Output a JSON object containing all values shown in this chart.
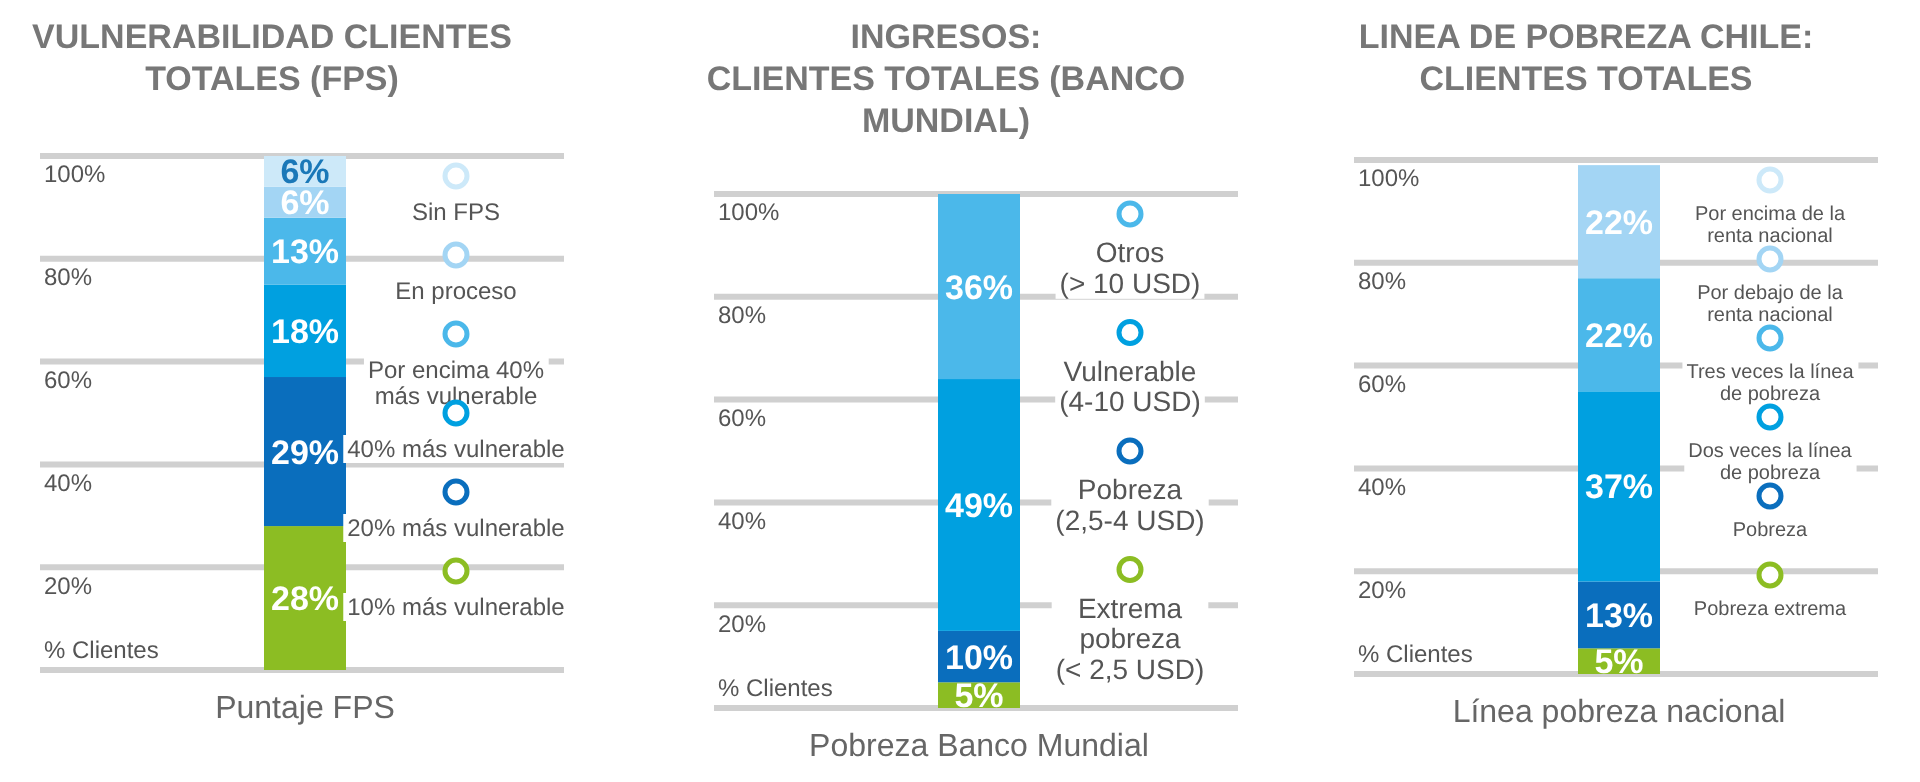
{
  "chart_data": [
    {
      "type": "bar",
      "stacked": true,
      "title": "VULNERABILIDAD CLIENTES\nTOTALES (FPS)",
      "xlabel": "Puntaje FPS",
      "ylabel": "% Clientes",
      "categories": [
        null
      ],
      "ylim": [
        0,
        100
      ],
      "yticks": [
        {
          "value": 20,
          "label": "20%"
        },
        {
          "value": 40,
          "label": "40%"
        },
        {
          "value": 60,
          "label": "60%"
        },
        {
          "value": 80,
          "label": "80%"
        },
        {
          "value": 100,
          "label": "100%"
        }
      ],
      "grid": "y",
      "legend": "right",
      "series": [
        {
          "name": "10% más vulnerable",
          "color": "#8cbd23",
          "values": [
            28
          ],
          "value_labels": [
            "28%"
          ]
        },
        {
          "name": "20% más vulnerable",
          "color": "#0a6ebd",
          "values": [
            29
          ],
          "value_labels": [
            "29%"
          ]
        },
        {
          "name": "40% más vulnerable",
          "color": "#00a0e0",
          "values": [
            18
          ],
          "value_labels": [
            "18%"
          ]
        },
        {
          "name": "Por encima 40%\nmás vulnerable",
          "color": "#4bb8ea",
          "values": [
            13
          ],
          "value_labels": [
            "13%"
          ]
        },
        {
          "name": "En proceso",
          "color": "#a3d5f4",
          "values": [
            6
          ],
          "value_labels": [
            "6%"
          ]
        },
        {
          "name": "Sin FPS",
          "color": "#cde9f9",
          "values": [
            6
          ],
          "value_labels": [
            "6%"
          ]
        }
      ]
    },
    {
      "type": "bar",
      "stacked": true,
      "title": "INGRESOS:\nCLIENTES TOTALES (BANCO\nMUNDIAL)",
      "xlabel": "Pobreza Banco Mundial",
      "ylabel": "% Clientes",
      "categories": [
        null
      ],
      "ylim": [
        0,
        100
      ],
      "yticks": [
        {
          "value": 20,
          "label": "20%"
        },
        {
          "value": 40,
          "label": "40%"
        },
        {
          "value": 60,
          "label": "60%"
        },
        {
          "value": 80,
          "label": "80%"
        },
        {
          "value": 100,
          "label": "100%"
        }
      ],
      "grid": "y",
      "legend": "right",
      "series": [
        {
          "name": "Extrema\npobreza\n(< 2,5 USD)",
          "color": "#8cbd23",
          "values": [
            5
          ],
          "value_labels": [
            "5%"
          ]
        },
        {
          "name": "Pobreza\n(2,5-4 USD)",
          "color": "#0a6ebd",
          "values": [
            10
          ],
          "value_labels": [
            "10%"
          ]
        },
        {
          "name": "Vulnerable\n(4-10 USD)",
          "color": "#00a0e0",
          "values": [
            49
          ],
          "value_labels": [
            "49%"
          ]
        },
        {
          "name": "Otros\n(> 10 USD)",
          "color": "#4bb8ea",
          "values": [
            36
          ],
          "value_labels": [
            "36%"
          ]
        }
      ]
    },
    {
      "type": "bar",
      "stacked": true,
      "title": "LINEA DE POBREZA CHILE:\nCLIENTES TOTALES",
      "xlabel": "Línea pobreza nacional",
      "ylabel": "% Clientes",
      "categories": [
        null
      ],
      "ylim": [
        0,
        100
      ],
      "yticks": [
        {
          "value": 20,
          "label": "20%"
        },
        {
          "value": 40,
          "label": "40%"
        },
        {
          "value": 60,
          "label": "60%"
        },
        {
          "value": 80,
          "label": "80%"
        },
        {
          "value": 100,
          "label": "100%"
        }
      ],
      "grid": "y",
      "legend": "right",
      "series": [
        {
          "name": "Pobreza extrema",
          "color": "#8cbd23",
          "values": [
            5
          ],
          "value_labels": [
            "5%"
          ]
        },
        {
          "name": "Pobreza",
          "color": "#0a6ebd",
          "values": [
            13
          ],
          "value_labels": [
            "13%"
          ]
        },
        {
          "name": "Dos veces la línea\nde pobreza",
          "color": "#00a0e0",
          "values": [
            37
          ],
          "value_labels": [
            "37%"
          ]
        },
        {
          "name": "Tres veces la línea\nde pobreza",
          "color": "#4bb8ea",
          "values": [
            22
          ],
          "value_labels": [
            "22%"
          ]
        },
        {
          "name": "Por debajo de la\nrenta nacional",
          "color": "#a3d5f4",
          "values": [
            22
          ],
          "value_labels": [
            "22%"
          ]
        },
        {
          "name": "Por encima de la\nrenta nacional",
          "color": "#cde9f9",
          "values": [
            null
          ],
          "value_labels": [
            null
          ]
        }
      ]
    }
  ]
}
